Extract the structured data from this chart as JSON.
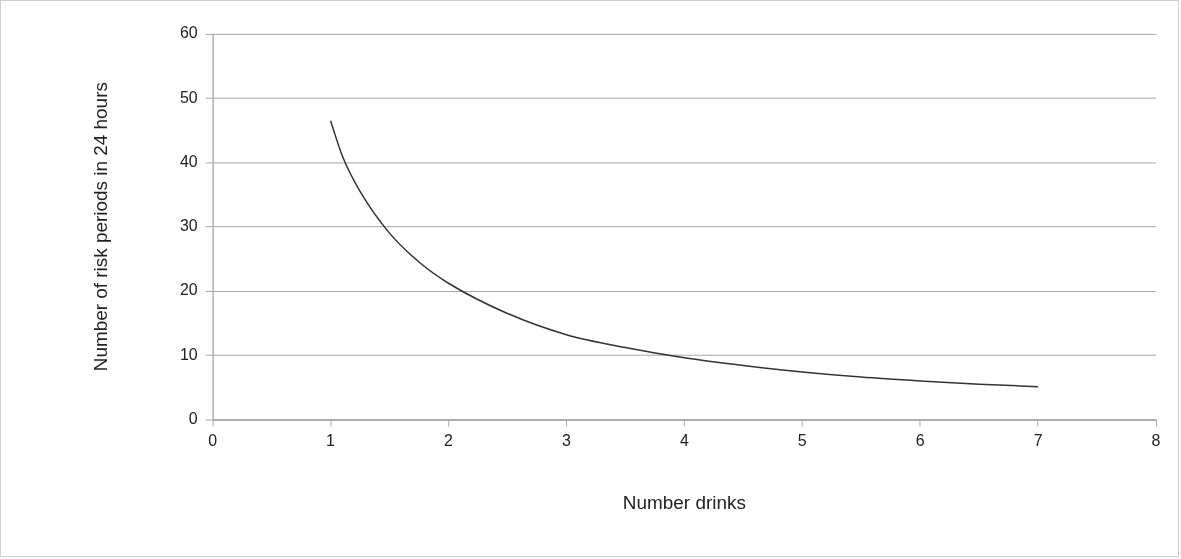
{
  "chart_data": {
    "type": "line",
    "xlabel": "Number drinks",
    "ylabel": "Number of risk periods in 24 hours",
    "x": [
      1,
      1.1,
      1.25,
      1.5,
      1.75,
      2,
      2.5,
      3,
      3.5,
      4,
      4.5,
      5,
      5.5,
      6,
      6.5,
      7
    ],
    "series": [
      {
        "color": "#333333",
        "values": [
          46.5,
          41,
          35.5,
          29,
          24.5,
          21.2,
          16.5,
          13.2,
          11.2,
          9.6,
          8.4,
          7.4,
          6.6,
          6,
          5.5,
          5.1
        ]
      }
    ],
    "xlim": [
      0,
      8
    ],
    "xticks": [
      0,
      1,
      2,
      3,
      4,
      5,
      6,
      7,
      8
    ],
    "ylim": [
      0,
      60
    ],
    "yticks": [
      0,
      10,
      20,
      30,
      40,
      50,
      60
    ],
    "grid": "y",
    "legend": false,
    "marker": "none",
    "line_style": "solid"
  }
}
